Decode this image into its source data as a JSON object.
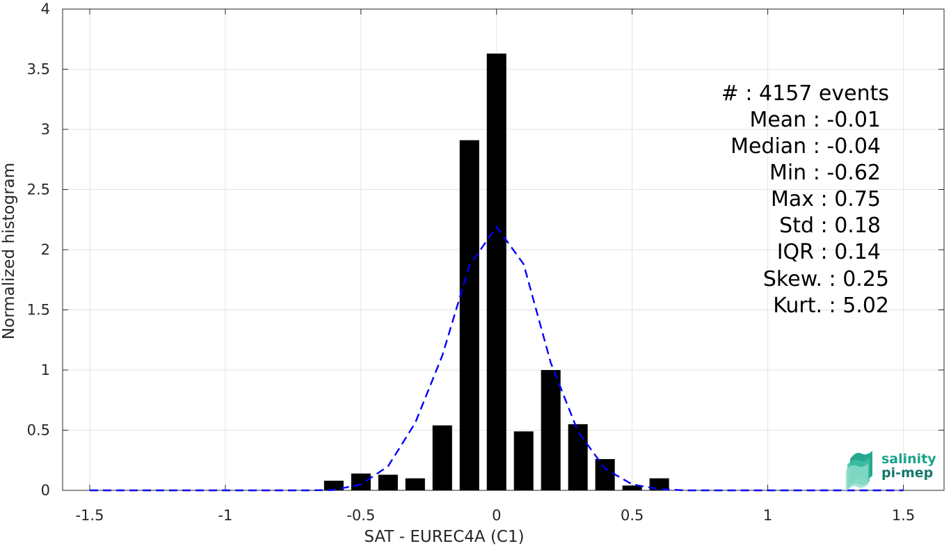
{
  "chart_data": {
    "type": "bar",
    "xlabel": "SAT - EUREC4A (C1)",
    "ylabel": "Normalized histogram",
    "xlim": [
      -1.6,
      1.65
    ],
    "ylim": [
      0,
      4
    ],
    "x_ticks": [
      -1.5,
      -1,
      -0.5,
      0,
      0.5,
      1,
      1.5
    ],
    "x_tick_labels": [
      "-1.5",
      "-1",
      "-0.5",
      "0",
      "0.5",
      "1",
      "1.5"
    ],
    "y_ticks": [
      0,
      0.5,
      1,
      1.5,
      2,
      2.5,
      3,
      3.5,
      4
    ],
    "y_tick_labels": [
      "0",
      "0.5",
      "1",
      "1.5",
      "2",
      "2.5",
      "3",
      "3.5",
      "4"
    ],
    "grid": true,
    "bar_width": 0.072,
    "bars": {
      "x": [
        -0.6,
        -0.5,
        -0.4,
        -0.3,
        -0.2,
        -0.1,
        0,
        0.1,
        0.2,
        0.3,
        0.4,
        0.5,
        0.6
      ],
      "values": [
        0.08,
        0.14,
        0.13,
        0.1,
        0.54,
        2.91,
        3.63,
        0.49,
        1.0,
        0.55,
        0.26,
        0.04,
        0.1
      ],
      "color": "#000000"
    },
    "fit_curve": {
      "style": "dashed",
      "color": "#0000ff",
      "x": [
        -1.5,
        -1.4,
        -1.3,
        -1.2,
        -1.1,
        -1.0,
        -0.9,
        -0.8,
        -0.7,
        -0.6,
        -0.5,
        -0.4,
        -0.3,
        -0.2,
        -0.1,
        0,
        0.1,
        0.2,
        0.3,
        0.4,
        0.5,
        0.6,
        0.7,
        0.8,
        0.9,
        1.0,
        1.1,
        1.2,
        1.3,
        1.4,
        1.5
      ],
      "y": [
        0,
        0,
        0,
        0,
        0,
        0,
        0,
        0,
        0,
        0.003,
        0.05,
        0.2,
        0.56,
        1.12,
        1.87,
        2.19,
        1.88,
        1.06,
        0.49,
        0.18,
        0.05,
        0.01,
        0,
        0,
        0,
        0,
        0,
        0,
        0,
        0,
        0
      ]
    },
    "stats": [
      "#  : 4157 events",
      "Mean : -0.01",
      "Median : -0.04",
      "Min : -0.62",
      "Max : 0.75",
      "Std : 0.18",
      "IQR : 0.14",
      "Skew. : 0.25",
      "Kurt. : 5.02"
    ]
  },
  "logo": {
    "line1": "salinity",
    "line2": "pi-mep",
    "color_line1": "#1aa38a",
    "color_line2": "#16766b"
  }
}
